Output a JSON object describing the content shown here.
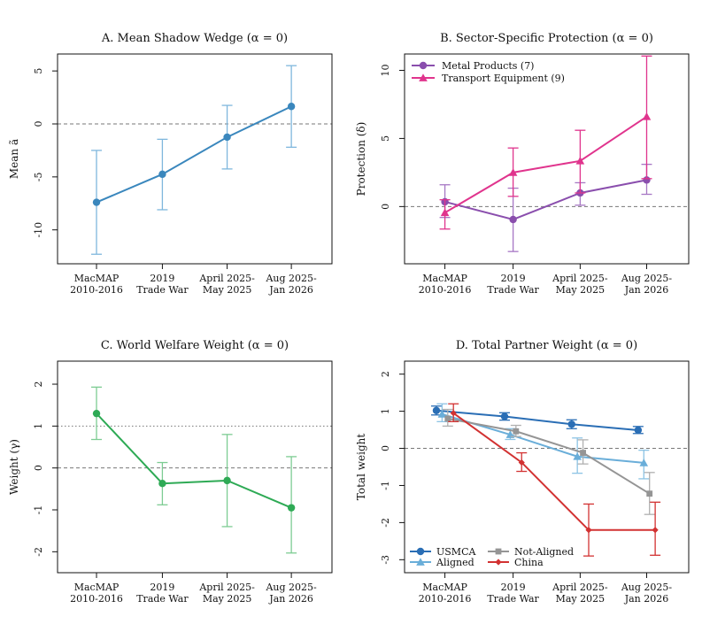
{
  "figure": {
    "background": "#ffffff"
  },
  "chart_data": [
    {
      "id": "A",
      "type": "line",
      "title": "A. Mean Shadow Wedge (α = 0)",
      "xlabel": "",
      "ylabel": "Mean ã",
      "categories": [
        [
          "MacMAP",
          "2010-2016"
        ],
        [
          "2019",
          "Trade War"
        ],
        [
          "April 2025-",
          "May 2025"
        ],
        [
          "Aug 2025-",
          "Jan 2026"
        ]
      ],
      "ylim": [
        -13.2,
        6.6
      ],
      "yticks": [
        -10,
        -5,
        0,
        5
      ],
      "ytick_labels": [
        "-10",
        "-5",
        "0",
        "5"
      ],
      "reference_lines": [
        {
          "y": 0,
          "style": "dashed"
        }
      ],
      "series": [
        {
          "name": "Mean ã",
          "color": "#3a87bd",
          "errcolor": "#7fb7dd",
          "marker": "circle",
          "values": [
            -7.4,
            -4.75,
            -1.25,
            1.65
          ],
          "lower": [
            -12.3,
            -8.1,
            -4.25,
            -2.2
          ],
          "upper": [
            -2.5,
            -1.45,
            1.75,
            5.5
          ]
        }
      ]
    },
    {
      "id": "B",
      "type": "line",
      "title": "B. Sector-Specific Protection (α = 0)",
      "xlabel": "",
      "ylabel": "Protection (δ)",
      "categories": [
        [
          "MacMAP",
          "2010-2016"
        ],
        [
          "2019",
          "Trade War"
        ],
        [
          "April 2025-",
          "May 2025"
        ],
        [
          "Aug 2025-",
          "Jan 2026"
        ]
      ],
      "ylim": [
        -4.2,
        11.2
      ],
      "yticks": [
        0,
        5,
        10
      ],
      "ytick_labels": [
        "0",
        "5",
        "10"
      ],
      "reference_lines": [
        {
          "y": 0,
          "style": "dashed"
        }
      ],
      "legend": {
        "position": "top-left"
      },
      "series": [
        {
          "name": "Metal Products (7)",
          "color": "#8a4ead",
          "errcolor": "#a777c4",
          "marker": "circle",
          "values": [
            0.35,
            -0.95,
            1.0,
            1.95
          ],
          "lower": [
            -0.8,
            -3.3,
            0.1,
            0.9
          ],
          "upper": [
            1.6,
            1.35,
            1.75,
            3.1
          ]
        },
        {
          "name": "Transport Equipment (9)",
          "color": "#e0348d",
          "errcolor": "#e0348d",
          "marker": "triangle",
          "values": [
            -0.45,
            2.5,
            3.35,
            6.6
          ],
          "lower": [
            -1.65,
            0.75,
            1.0,
            2.05
          ],
          "upper": [
            0.5,
            4.3,
            5.6,
            11.05
          ]
        }
      ]
    },
    {
      "id": "C",
      "type": "line",
      "title": "C. World Welfare Weight (α = 0)",
      "xlabel": "",
      "ylabel": "Weight (γ)",
      "categories": [
        [
          "MacMAP",
          "2010-2016"
        ],
        [
          "2019",
          "Trade War"
        ],
        [
          "April 2025-",
          "May 2025"
        ],
        [
          "Aug 2025-",
          "Jan 2026"
        ]
      ],
      "ylim": [
        -2.5,
        2.55
      ],
      "yticks": [
        -2,
        -1,
        0,
        1,
        2
      ],
      "ytick_labels": [
        "-2",
        "-1",
        "0",
        "1",
        "2"
      ],
      "reference_lines": [
        {
          "y": 1,
          "style": "dotted"
        },
        {
          "y": 0,
          "style": "dashed"
        }
      ],
      "series": [
        {
          "name": "Weight (γ)",
          "color": "#2eaa55",
          "errcolor": "#7dcc93",
          "marker": "circle",
          "values": [
            1.3,
            -0.37,
            -0.3,
            -0.95
          ],
          "lower": [
            0.68,
            -0.88,
            -1.4,
            -2.03
          ],
          "upper": [
            1.93,
            0.13,
            0.8,
            0.27
          ]
        }
      ]
    },
    {
      "id": "D",
      "type": "line",
      "title": "D. Total Partner Weight (α = 0)",
      "xlabel": "",
      "ylabel": "Total weight",
      "categories": [
        [
          "MacMAP",
          "2010-2016"
        ],
        [
          "2019",
          "Trade War"
        ],
        [
          "April 2025-",
          "May 2025"
        ],
        [
          "Aug 2025-",
          "Jan 2026"
        ]
      ],
      "ylim": [
        -3.35,
        2.35
      ],
      "yticks": [
        -3,
        -2,
        -1,
        0,
        1,
        2
      ],
      "ytick_labels": [
        "-3",
        "-2",
        "-1",
        "0",
        "1",
        "2"
      ],
      "reference_lines": [
        {
          "y": 0,
          "style": "dashed"
        }
      ],
      "legend": {
        "position": "bottom-left"
      },
      "series": [
        {
          "name": "USMCA",
          "color": "#2a6eb5",
          "errcolor": "#2a6eb5",
          "marker": "circle",
          "offset": -0.12,
          "values": [
            1.02,
            0.86,
            0.65,
            0.49
          ],
          "lower": [
            0.9,
            0.76,
            0.53,
            0.4
          ],
          "upper": [
            1.14,
            0.96,
            0.77,
            0.59
          ]
        },
        {
          "name": "Aligned",
          "color": "#6aaed9",
          "errcolor": "#8cc3e4",
          "marker": "triangle",
          "offset": -0.04,
          "values": [
            0.92,
            0.37,
            -0.22,
            -0.39
          ],
          "lower": [
            0.72,
            0.24,
            -0.67,
            -0.82
          ],
          "upper": [
            1.2,
            0.53,
            0.28,
            -0.05
          ]
        },
        {
          "name": "Not-Aligned",
          "color": "#959595",
          "errcolor": "#b0b0b0",
          "marker": "square",
          "offset": 0.04,
          "values": [
            0.8,
            0.46,
            -0.12,
            -1.22
          ],
          "lower": [
            0.6,
            0.32,
            -0.42,
            -1.78
          ],
          "upper": [
            1.05,
            0.62,
            0.23,
            -0.65
          ]
        },
        {
          "name": "China",
          "color": "#d23232",
          "errcolor": "#d23232",
          "marker": "diamond",
          "offset": 0.12,
          "values": [
            0.95,
            -0.38,
            -2.2,
            -2.2
          ],
          "lower": [
            0.72,
            -0.62,
            -2.9,
            -2.88
          ],
          "upper": [
            1.2,
            -0.12,
            -1.5,
            -1.45
          ]
        }
      ]
    }
  ]
}
